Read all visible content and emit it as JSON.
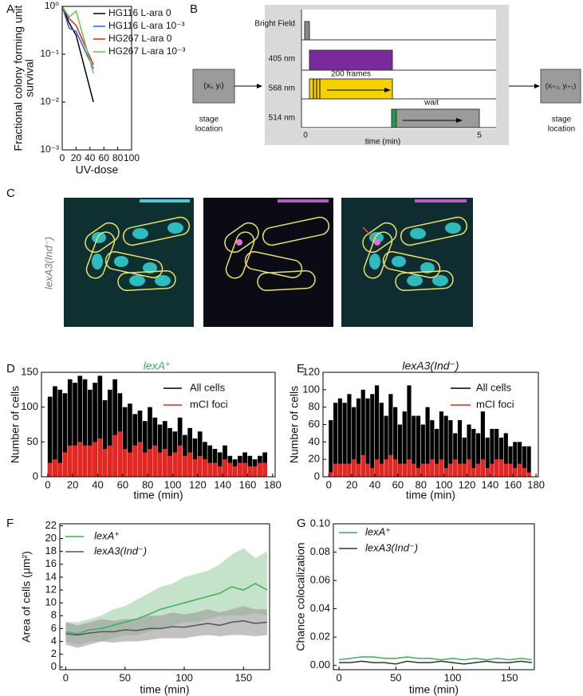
{
  "panel_labels": [
    "A",
    "B",
    "C",
    "D",
    "E",
    "F",
    "G"
  ],
  "chart_data": [
    {
      "type": "line",
      "log_y": true,
      "ylabel": [
        "Fractional colony forming unit",
        "survival"
      ],
      "xlabel": "UV-dose",
      "x": [
        0,
        10,
        20,
        45
      ],
      "series": [
        {
          "name": "HG116 L-ara 0",
          "color": "#000000",
          "values": [
            1,
            0.45,
            0.25,
            0.01
          ]
        },
        {
          "name": "HG116 L-ara 10⁻³",
          "color": "#2a5fd8",
          "values": [
            1,
            0.35,
            0.3,
            0.05
          ]
        },
        {
          "name": "HG267 L-ara 0",
          "color": "#d8262a",
          "values": [
            1,
            0.55,
            0.4,
            0.06
          ]
        },
        {
          "name": "HG267 L-ara 10⁻³",
          "color": "#6abf4b",
          "values": [
            1,
            0.6,
            0.8,
            0.04
          ]
        }
      ],
      "xlim": [
        0,
        100
      ],
      "xticks": [
        0,
        20,
        40,
        60,
        80,
        100
      ],
      "ylim": [
        0.001,
        1
      ],
      "yticks": [
        {
          "value": 0.001,
          "label": "10⁻³"
        },
        {
          "value": 0.01,
          "label": "10⁻²"
        },
        {
          "value": 0.1,
          "label": "10⁻¹"
        },
        {
          "value": 1,
          "label": "10⁰"
        }
      ]
    },
    {
      "type": "histogram",
      "title": "lexA⁺",
      "title_color": "#3cae5b",
      "ylabel": [
        "Number of cells"
      ],
      "xlabel": "time (min)",
      "bins": [
        0,
        4,
        8,
        12,
        16,
        20,
        24,
        28,
        32,
        36,
        40,
        44,
        48,
        52,
        56,
        60,
        64,
        68,
        72,
        76,
        80,
        84,
        88,
        92,
        96,
        100,
        104,
        108,
        112,
        116,
        120,
        124,
        128,
        132,
        136,
        140,
        144,
        148,
        152,
        156,
        160,
        164,
        168,
        172,
        176
      ],
      "series": [
        {
          "name": "All cells",
          "color": "#000000",
          "values": [
            115,
            130,
            125,
            120,
            140,
            135,
            145,
            140,
            125,
            135,
            145,
            110,
            125,
            140,
            120,
            100,
            105,
            90,
            95,
            80,
            100,
            85,
            75,
            80,
            70,
            65,
            85,
            60,
            70,
            55,
            65,
            50,
            45,
            40,
            35,
            45,
            30,
            25,
            30,
            35,
            30,
            25,
            30,
            35
          ]
        },
        {
          "name": "mCI foci",
          "color": "#e8251f",
          "values": [
            20,
            25,
            20,
            35,
            45,
            45,
            50,
            45,
            45,
            50,
            55,
            40,
            45,
            60,
            65,
            40,
            35,
            45,
            50,
            35,
            40,
            45,
            35,
            40,
            30,
            35,
            45,
            30,
            35,
            25,
            30,
            25,
            20,
            20,
            15,
            25,
            20,
            15,
            20,
            20,
            15,
            15,
            20,
            20
          ]
        }
      ],
      "xlim": [
        -5,
        182
      ],
      "xticks": [
        0,
        20,
        40,
        60,
        80,
        100,
        120,
        140,
        160,
        180
      ],
      "ylim": [
        0,
        150
      ],
      "yticks": [
        0,
        50,
        100,
        150
      ]
    },
    {
      "type": "histogram",
      "title": "lexA3(Ind⁻)",
      "title_color": "#111111",
      "ylabel": [
        "Number of cells"
      ],
      "xlabel": "time (min)",
      "bins": [
        0,
        4,
        8,
        12,
        16,
        20,
        24,
        28,
        32,
        36,
        40,
        44,
        48,
        52,
        56,
        60,
        64,
        68,
        72,
        76,
        80,
        84,
        88,
        92,
        96,
        100,
        104,
        108,
        112,
        116,
        120,
        124,
        128,
        132,
        136,
        140,
        144,
        148,
        152,
        156,
        160,
        164,
        168,
        172,
        176
      ],
      "series": [
        {
          "name": "All cells",
          "color": "#000000",
          "values": [
            65,
            85,
            90,
            85,
            95,
            80,
            90,
            100,
            90,
            95,
            105,
            85,
            70,
            95,
            80,
            60,
            75,
            105,
            70,
            70,
            60,
            80,
            65,
            55,
            75,
            70,
            65,
            50,
            65,
            45,
            60,
            55,
            50,
            75,
            45,
            55,
            55,
            45,
            50,
            35,
            40,
            40,
            35,
            35
          ]
        },
        {
          "name": "mCI foci",
          "color": "#e8251f",
          "values": [
            5,
            15,
            15,
            15,
            15,
            20,
            15,
            25,
            15,
            10,
            20,
            15,
            20,
            25,
            20,
            15,
            15,
            20,
            15,
            10,
            15,
            15,
            20,
            15,
            20,
            10,
            15,
            20,
            15,
            15,
            20,
            10,
            15,
            20,
            10,
            15,
            20,
            20,
            15,
            15,
            10,
            15,
            10,
            5
          ]
        }
      ],
      "xlim": [
        -5,
        182
      ],
      "xticks": [
        0,
        20,
        40,
        60,
        80,
        100,
        120,
        140,
        160,
        180
      ],
      "ylim": [
        0,
        120
      ],
      "yticks": [
        0,
        20,
        40,
        60,
        80,
        100,
        120
      ]
    },
    {
      "type": "line",
      "ylabel": [
        "Area of cells (μm²)"
      ],
      "xlabel": "time (min)",
      "x": [
        0,
        10,
        20,
        30,
        40,
        50,
        60,
        70,
        80,
        90,
        100,
        110,
        120,
        130,
        140,
        150,
        160,
        170
      ],
      "series": [
        {
          "name": "lexA⁺",
          "color": "#3cae5b",
          "band_color": "#9fd1a6",
          "values": [
            5.5,
            5.2,
            5.8,
            6.0,
            6.5,
            7.0,
            7.5,
            8.2,
            9.0,
            9.5,
            10.0,
            10.5,
            11.0,
            11.5,
            12.5,
            12.0,
            13.0,
            12.0
          ],
          "lower": [
            4,
            3.5,
            4,
            4,
            4.5,
            5,
            5,
            5.5,
            6,
            6.5,
            7,
            7,
            7.5,
            8,
            8,
            8,
            8.5,
            8
          ],
          "upper": [
            7,
            7,
            7.5,
            8,
            9,
            9.5,
            10.5,
            11.5,
            12.5,
            13,
            14,
            14.5,
            15,
            16,
            17.5,
            18.5,
            17,
            18
          ]
        },
        {
          "name": "lexA3(Ind⁻)",
          "color": "#555555",
          "band_color": "#9a9a9a",
          "values": [
            5.2,
            5.0,
            5.3,
            5.5,
            5.5,
            5.8,
            5.7,
            6.0,
            6.0,
            6.3,
            6.2,
            6.5,
            6.8,
            6.5,
            7.0,
            7.2,
            6.8,
            7.0
          ],
          "lower": [
            3.5,
            3,
            3.5,
            4,
            3.8,
            4,
            4,
            4.2,
            4.5,
            4.5,
            4.5,
            4.8,
            5,
            4.8,
            5,
            5,
            4.8,
            5
          ],
          "upper": [
            7,
            6.5,
            7,
            7.5,
            7.2,
            7.5,
            7.5,
            8,
            8,
            8.5,
            8.2,
            8.5,
            9,
            8.5,
            9,
            9.5,
            9,
            9
          ]
        }
      ],
      "xlim": [
        -5,
        172
      ],
      "xticks": [
        0,
        50,
        100,
        150
      ],
      "ylim": [
        -0.4,
        22.3
      ],
      "yticks": [
        0,
        2,
        4,
        6,
        8,
        10,
        12,
        14,
        16,
        18,
        20,
        22
      ]
    },
    {
      "type": "line",
      "ylabel": [
        "Chance colocalization"
      ],
      "xlabel": "time (min)",
      "x": [
        0,
        10,
        20,
        30,
        40,
        50,
        60,
        70,
        80,
        90,
        100,
        110,
        120,
        130,
        140,
        150,
        160,
        170
      ],
      "series": [
        {
          "name": "lexA⁺",
          "color": "#3cae5b",
          "values": [
            0.004,
            0.005,
            0.006,
            0.006,
            0.005,
            0.005,
            0.006,
            0.005,
            0.005,
            0.004,
            0.005,
            0.004,
            0.005,
            0.004,
            0.005,
            0.004,
            0.005,
            0.004
          ]
        },
        {
          "name": "lexA3(Ind⁻)",
          "color": "#333333",
          "values": [
            0.002,
            0.002,
            0.003,
            0.002,
            0.002,
            0.001,
            0.003,
            0.002,
            0.002,
            0.003,
            0.002,
            0.001,
            0.002,
            0.003,
            0.002,
            0.002,
            0.003,
            0.002
          ]
        }
      ],
      "xlim": [
        -5,
        172
      ],
      "xticks": [
        0,
        50,
        100,
        150
      ],
      "ylim": [
        -0.003,
        0.1
      ],
      "yticks": [
        {
          "value": 0,
          "label": "0.00"
        },
        {
          "value": 0.02,
          "label": "0.02"
        },
        {
          "value": 0.04,
          "label": "0.04"
        },
        {
          "value": 0.06,
          "label": "0.06"
        },
        {
          "value": 0.08,
          "label": "0.08"
        },
        {
          "value": 0.1,
          "label": "0.10"
        }
      ]
    }
  ],
  "diagram": {
    "channels": [
      "Bright Field",
      "405 nm",
      "568 nm",
      "514 nm"
    ],
    "frames": "200 frames",
    "wait": "wait",
    "time_ticks": [
      "0",
      "5"
    ],
    "time_label": "time (min)",
    "start": {
      "coords": "(xᵢ, yᵢ)",
      "label": [
        "stage",
        "location"
      ]
    },
    "end": {
      "coords": "(xᵢ₊₁, yᵢ₊₁)",
      "label": [
        "stage",
        "location"
      ]
    }
  },
  "micrograph": {
    "label": "lexA3(Ind⁻)"
  }
}
